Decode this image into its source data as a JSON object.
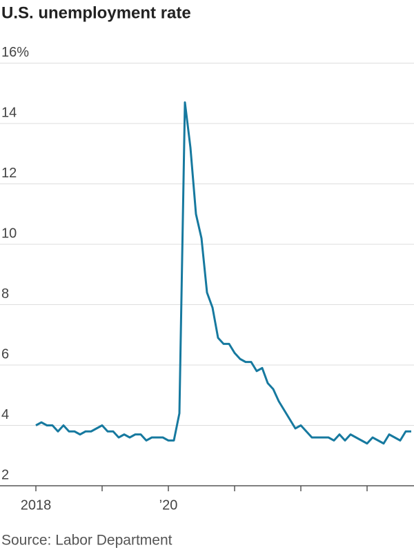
{
  "chart_data": {
    "type": "line",
    "title": "U.S. unemployment rate",
    "source": "Source: Labor Department",
    "categories": [
      "2018",
      null,
      null,
      null,
      null,
      null,
      null,
      null,
      null,
      null,
      null,
      null,
      null,
      null,
      null,
      null,
      null,
      null,
      null,
      null,
      null,
      null,
      null,
      null,
      "’20",
      null,
      null,
      null,
      null,
      null,
      null,
      null,
      null,
      null,
      null,
      null,
      null,
      null,
      null,
      null,
      null,
      null,
      null,
      null,
      null,
      null,
      null,
      null,
      null,
      null,
      null,
      null,
      null,
      null,
      null,
      null,
      null,
      null,
      null,
      null,
      null,
      null,
      null,
      null,
      null,
      null,
      null,
      null,
      null
    ],
    "series": [
      {
        "name": "Unemployment rate",
        "color": "#16799f",
        "values": [
          4.0,
          4.1,
          4.0,
          4.0,
          3.8,
          4.0,
          3.8,
          3.8,
          3.7,
          3.8,
          3.8,
          3.9,
          4.0,
          3.8,
          3.8,
          3.6,
          3.7,
          3.6,
          3.7,
          3.7,
          3.5,
          3.6,
          3.6,
          3.6,
          3.5,
          3.5,
          4.4,
          14.7,
          13.2,
          11.0,
          10.2,
          8.4,
          7.9,
          6.9,
          6.7,
          6.7,
          6.4,
          6.2,
          6.1,
          6.1,
          5.8,
          5.9,
          5.4,
          5.2,
          4.8,
          4.5,
          4.2,
          3.9,
          4.0,
          3.8,
          3.6,
          3.6,
          3.6,
          3.6,
          3.5,
          3.7,
          3.5,
          3.7,
          3.6,
          3.5,
          3.4,
          3.6,
          3.5,
          3.4,
          3.7,
          3.6,
          3.5,
          3.8,
          3.8
        ]
      }
    ],
    "ylim": [
      2,
      16
    ],
    "yticks": [
      2,
      4,
      6,
      8,
      10,
      12,
      {
        "value": 14,
        "label": "14"
      },
      {
        "value": 16,
        "label": "16%"
      }
    ],
    "grid": true
  }
}
